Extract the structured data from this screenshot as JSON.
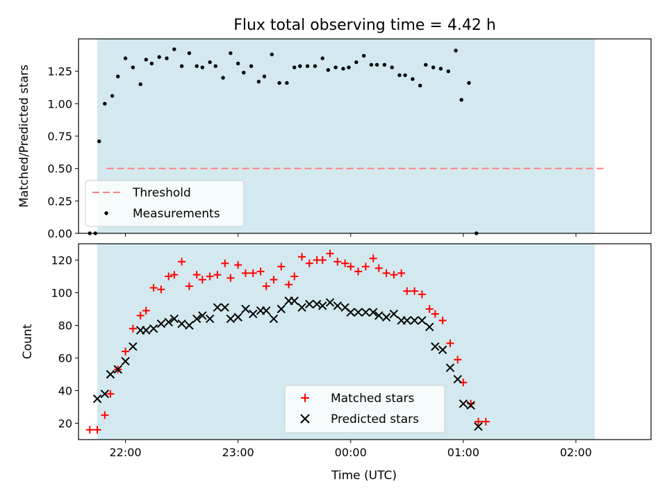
{
  "chart_data": [
    {
      "type": "scatter",
      "title": "Flux total observing time = 4.42 h",
      "xlabel": "",
      "ylabel": "Matched/Predicted stars",
      "xlim": [
        "21:35",
        "02:40"
      ],
      "ylim": [
        0,
        1.5
      ],
      "yticks": [
        "0.00",
        "0.25",
        "0.50",
        "0.75",
        "1.00",
        "1.25"
      ],
      "xticks": [
        "22:00",
        "23:00",
        "00:00",
        "01:00",
        "02:00"
      ],
      "observing_window": [
        "21:45",
        "02:10"
      ],
      "observing_window_color": "#d3e9ef",
      "threshold": {
        "label": "Threshold",
        "value": 0.5,
        "x_range": [
          "21:50",
          "02:15"
        ],
        "color": "#ff7f7f"
      },
      "series": [
        {
          "name": "Measurements",
          "color": "#000000",
          "points": [
            [
              "21:41",
              0.0
            ],
            [
              "21:44",
              0.0
            ],
            [
              "21:46",
              0.71
            ],
            [
              "21:49",
              1.0
            ],
            [
              "21:53",
              1.06
            ],
            [
              "21:56",
              1.21
            ],
            [
              "22:00",
              1.35
            ],
            [
              "22:04",
              1.28
            ],
            [
              "22:08",
              1.15
            ],
            [
              "22:11",
              1.34
            ],
            [
              "22:14",
              1.31
            ],
            [
              "22:18",
              1.36
            ],
            [
              "22:22",
              1.35
            ],
            [
              "22:26",
              1.42
            ],
            [
              "22:30",
              1.29
            ],
            [
              "22:34",
              1.39
            ],
            [
              "22:38",
              1.29
            ],
            [
              "22:41",
              1.28
            ],
            [
              "22:45",
              1.32
            ],
            [
              "22:48",
              1.29
            ],
            [
              "22:52",
              1.2
            ],
            [
              "22:56",
              1.39
            ],
            [
              "23:00",
              1.31
            ],
            [
              "23:03",
              1.24
            ],
            [
              "23:07",
              1.29
            ],
            [
              "23:11",
              1.17
            ],
            [
              "23:14",
              1.21
            ],
            [
              "23:18",
              1.38
            ],
            [
              "23:22",
              1.16
            ],
            [
              "23:26",
              1.16
            ],
            [
              "23:30",
              1.28
            ],
            [
              "23:33",
              1.29
            ],
            [
              "23:37",
              1.29
            ],
            [
              "23:41",
              1.29
            ],
            [
              "23:45",
              1.35
            ],
            [
              "23:48",
              1.26
            ],
            [
              "23:52",
              1.28
            ],
            [
              "23:56",
              1.27
            ],
            [
              "23:59",
              1.28
            ],
            [
              "00:03",
              1.32
            ],
            [
              "00:07",
              1.37
            ],
            [
              "00:11",
              1.3
            ],
            [
              "00:14",
              1.3
            ],
            [
              "00:18",
              1.3
            ],
            [
              "00:22",
              1.28
            ],
            [
              "00:26",
              1.22
            ],
            [
              "00:29",
              1.22
            ],
            [
              "00:33",
              1.19
            ],
            [
              "00:37",
              1.14
            ],
            [
              "00:40",
              1.3
            ],
            [
              "00:44",
              1.28
            ],
            [
              "00:48",
              1.27
            ],
            [
              "00:52",
              1.25
            ],
            [
              "00:56",
              1.41
            ],
            [
              "00:59",
              1.03
            ],
            [
              "01:03",
              1.16
            ],
            [
              "01:07",
              0.0
            ]
          ]
        }
      ],
      "legend": [
        "Threshold",
        "Measurements"
      ],
      "legend_position": "lower-left"
    },
    {
      "type": "scatter",
      "title": "",
      "xlabel": "Time (UTC)",
      "ylabel": "Count",
      "xlim": [
        "21:35",
        "02:40"
      ],
      "ylim": [
        10,
        130
      ],
      "yticks": [
        "20",
        "40",
        "60",
        "80",
        "100",
        "120"
      ],
      "xticks": [
        "22:00",
        "23:00",
        "00:00",
        "01:00",
        "02:00"
      ],
      "observing_window": [
        "21:45",
        "02:10"
      ],
      "observing_window_color": "#d3e9ef",
      "series": [
        {
          "name": "Matched stars",
          "color": "#ff0000",
          "marker": "plus",
          "points": [
            [
              "21:41",
              16
            ],
            [
              "21:45",
              16
            ],
            [
              "21:49",
              25
            ],
            [
              "21:52",
              38
            ],
            [
              "21:56",
              53
            ],
            [
              "22:00",
              64
            ],
            [
              "22:04",
              78
            ],
            [
              "22:08",
              86
            ],
            [
              "22:11",
              89
            ],
            [
              "22:15",
              103
            ],
            [
              "22:19",
              102
            ],
            [
              "22:23",
              110
            ],
            [
              "22:26",
              111
            ],
            [
              "22:30",
              119
            ],
            [
              "22:34",
              104
            ],
            [
              "22:38",
              111
            ],
            [
              "22:41",
              108
            ],
            [
              "22:45",
              110
            ],
            [
              "22:49",
              111
            ],
            [
              "22:53",
              118
            ],
            [
              "22:56",
              109
            ],
            [
              "23:00",
              117
            ],
            [
              "23:04",
              112
            ],
            [
              "23:08",
              112
            ],
            [
              "23:12",
              113
            ],
            [
              "23:15",
              104
            ],
            [
              "23:19",
              108
            ],
            [
              "23:23",
              116
            ],
            [
              "23:27",
              105
            ],
            [
              "23:30",
              110
            ],
            [
              "23:34",
              122
            ],
            [
              "23:38",
              118
            ],
            [
              "23:42",
              120
            ],
            [
              "23:45",
              120
            ],
            [
              "23:49",
              124
            ],
            [
              "23:53",
              119
            ],
            [
              "23:57",
              118
            ],
            [
              "00:00",
              116
            ],
            [
              "00:04",
              113
            ],
            [
              "00:08",
              116
            ],
            [
              "00:12",
              121
            ],
            [
              "00:15",
              115
            ],
            [
              "00:19",
              112
            ],
            [
              "00:23",
              111
            ],
            [
              "00:27",
              112
            ],
            [
              "00:30",
              101
            ],
            [
              "00:34",
              101
            ],
            [
              "00:38",
              99
            ],
            [
              "00:42",
              90
            ],
            [
              "00:45",
              87
            ],
            [
              "00:49",
              83
            ],
            [
              "00:53",
              69
            ],
            [
              "00:57",
              59
            ],
            [
              "01:00",
              45
            ],
            [
              "01:04",
              32
            ],
            [
              "01:08",
              21
            ],
            [
              "01:12",
              21
            ]
          ]
        },
        {
          "name": "Predicted stars",
          "color": "#000000",
          "marker": "x",
          "points": [
            [
              "21:45",
              35
            ],
            [
              "21:49",
              38
            ],
            [
              "21:52",
              50
            ],
            [
              "21:56",
              53
            ],
            [
              "22:00",
              58
            ],
            [
              "22:04",
              67
            ],
            [
              "22:08",
              77
            ],
            [
              "22:11",
              77
            ],
            [
              "22:15",
              78
            ],
            [
              "22:19",
              81
            ],
            [
              "22:23",
              82
            ],
            [
              "22:26",
              84
            ],
            [
              "22:30",
              81
            ],
            [
              "22:34",
              80
            ],
            [
              "22:38",
              84
            ],
            [
              "22:41",
              86
            ],
            [
              "22:45",
              84
            ],
            [
              "22:49",
              91
            ],
            [
              "22:53",
              91
            ],
            [
              "22:56",
              84
            ],
            [
              "23:00",
              85
            ],
            [
              "23:04",
              90
            ],
            [
              "23:08",
              87
            ],
            [
              "23:12",
              89
            ],
            [
              "23:15",
              89
            ],
            [
              "23:19",
              84
            ],
            [
              "23:23",
              90
            ],
            [
              "23:27",
              95
            ],
            [
              "23:30",
              95
            ],
            [
              "23:34",
              91
            ],
            [
              "23:38",
              93
            ],
            [
              "23:42",
              93
            ],
            [
              "23:45",
              92
            ],
            [
              "23:49",
              94
            ],
            [
              "23:53",
              92
            ],
            [
              "23:57",
              91
            ],
            [
              "00:00",
              88
            ],
            [
              "00:04",
              88
            ],
            [
              "00:08",
              88
            ],
            [
              "00:12",
              88
            ],
            [
              "00:15",
              86
            ],
            [
              "00:19",
              85
            ],
            [
              "00:23",
              87
            ],
            [
              "00:27",
              83
            ],
            [
              "00:30",
              83
            ],
            [
              "00:34",
              83
            ],
            [
              "00:38",
              83
            ],
            [
              "00:42",
              79
            ],
            [
              "00:45",
              67
            ],
            [
              "00:49",
              65
            ],
            [
              "00:53",
              54
            ],
            [
              "00:57",
              47
            ],
            [
              "01:00",
              32
            ],
            [
              "01:04",
              31
            ],
            [
              "01:08",
              18
            ]
          ]
        }
      ],
      "legend": [
        "Matched stars",
        "Predicted stars"
      ],
      "legend_position": "lower-center"
    }
  ]
}
